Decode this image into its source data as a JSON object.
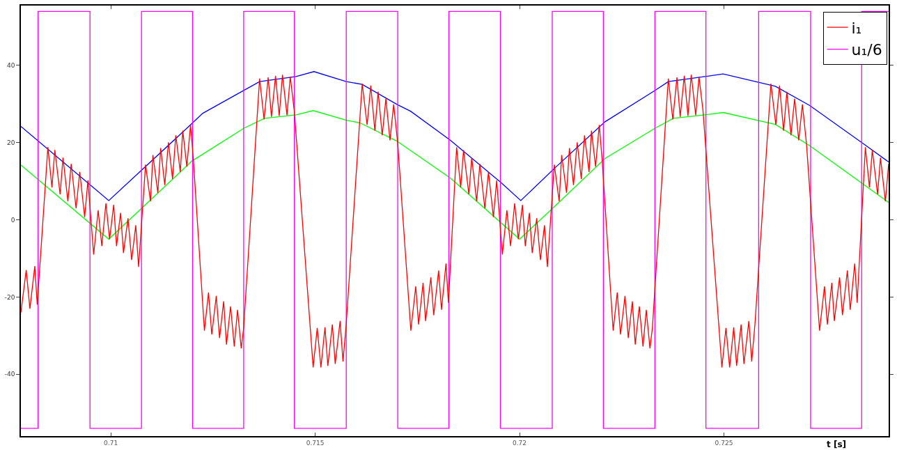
{
  "chart_data": {
    "type": "line",
    "xlabel": "t [s]",
    "xlim": [
      0.7078,
      0.72903
    ],
    "ylim": [
      -56,
      55.5
    ],
    "xticks": [
      0.71,
      0.715,
      0.72,
      0.725
    ],
    "yticks": [
      -40,
      -20,
      0,
      20,
      40
    ],
    "legend": "top right",
    "marker": "none",
    "line_style": "solid",
    "series": [
      {
        "name": "i₁",
        "color": "#ff0000",
        "x": [
          0.7078,
          0.70793,
          0.70802,
          0.70814,
          0.7082,
          0.70846,
          0.70856,
          0.70863,
          0.70876,
          0.70883,
          0.70895,
          0.70903,
          0.70915,
          0.70924,
          0.70936,
          0.70944,
          0.70958,
          0.70969,
          0.70978,
          0.70988,
          0.70997,
          0.71007,
          0.71014,
          0.71024,
          0.71031,
          0.71042,
          0.71051,
          0.71061,
          0.71068,
          0.71085,
          0.71097,
          0.71103,
          0.71115,
          0.71122,
          0.71132,
          0.71141,
          0.71151,
          0.71159,
          0.7117,
          0.71176,
          0.71186,
          0.71195,
          0.71202,
          0.71229,
          0.71239,
          0.71247,
          0.71258,
          0.71266,
          0.71276,
          0.71283,
          0.71293,
          0.71302,
          0.7131,
          0.71319,
          0.71325,
          0.71364,
          0.71375,
          0.71385,
          0.71393,
          0.71403,
          0.71412,
          0.7142,
          0.71431,
          0.71439,
          0.71449,
          0.71495,
          0.71505,
          0.71514,
          0.71524,
          0.71531,
          0.71542,
          0.71549,
          0.71561,
          0.71568,
          0.71576,
          0.71615,
          0.71627,
          0.71636,
          0.71646,
          0.71654,
          0.71664,
          0.71673,
          0.71683,
          0.71692,
          0.71702,
          0.71734,
          0.71746,
          0.71753,
          0.71764,
          0.7177,
          0.71783,
          0.7179,
          0.71802,
          0.71809,
          0.7182,
          0.71826,
          0.71846,
          0.71856,
          0.71863,
          0.71876,
          0.71883,
          0.71895,
          0.71903,
          0.71915,
          0.71924,
          0.71936,
          0.71944,
          0.71958,
          0.71969,
          0.71978,
          0.71988,
          0.71997,
          0.72007,
          0.72014,
          0.72024,
          0.72031,
          0.72042,
          0.72051,
          0.72061,
          0.72068,
          0.72085,
          0.72097,
          0.72103,
          0.72115,
          0.72122,
          0.72132,
          0.72141,
          0.72151,
          0.72159,
          0.7217,
          0.72176,
          0.72186,
          0.72195,
          0.72202,
          0.72229,
          0.72239,
          0.72247,
          0.72258,
          0.72266,
          0.72276,
          0.72283,
          0.72293,
          0.72302,
          0.7231,
          0.72319,
          0.72325,
          0.72364,
          0.72375,
          0.72385,
          0.72393,
          0.72403,
          0.72412,
          0.7242,
          0.72431,
          0.72439,
          0.72449,
          0.72495,
          0.72505,
          0.72514,
          0.72524,
          0.72531,
          0.72542,
          0.72549,
          0.72561,
          0.72568,
          0.72576,
          0.72615,
          0.72627,
          0.72636,
          0.72646,
          0.72654,
          0.72664,
          0.72673,
          0.72683,
          0.72692,
          0.72702,
          0.72734,
          0.72746,
          0.72753,
          0.72764,
          0.7277,
          0.72783,
          0.7279,
          0.72802,
          0.72809,
          0.7282,
          0.72826,
          0.72846,
          0.72856,
          0.72863,
          0.72876,
          0.72883,
          0.72895,
          0.72903
        ],
        "values": [
          -24,
          -13,
          -23,
          -12,
          -22,
          18.8,
          8.4,
          18.1,
          6.6,
          16.1,
          4.8,
          14.5,
          3,
          12.4,
          0.7,
          10.2,
          -9,
          2.5,
          -6.8,
          4.3,
          -5,
          3.9,
          -6.8,
          1.8,
          -8.6,
          0.4,
          -10.4,
          -1.4,
          -12.2,
          14.3,
          4.8,
          16.8,
          7,
          18.6,
          9,
          20.1,
          10.6,
          21.9,
          12.4,
          23.1,
          13.8,
          24.6,
          15.6,
          -28.7,
          -18.8,
          -29.7,
          -19.7,
          -30.6,
          -21.1,
          -32.3,
          -22.4,
          -32.8,
          -23.3,
          -33.3,
          -28,
          36.6,
          26,
          36.9,
          26.7,
          37.3,
          26.9,
          37.6,
          27.1,
          37.1,
          28.1,
          -38.2,
          -28,
          -38.2,
          -27.8,
          -37.8,
          -27.1,
          -37.3,
          -26.2,
          -36.7,
          -26.9,
          35.3,
          24.6,
          34.8,
          23.1,
          33.2,
          21.9,
          31.4,
          20.6,
          29.9,
          19.7,
          -28.7,
          -17.2,
          -27.1,
          -16.3,
          -26.2,
          -14.9,
          -24.7,
          -13.1,
          -23.3,
          -11.3,
          -21.5,
          18.8,
          8.4,
          18.1,
          6.6,
          16.1,
          4.8,
          14.5,
          3,
          12.4,
          0.7,
          10.2,
          -9,
          2.5,
          -6.8,
          4.3,
          -5,
          3.9,
          -6.8,
          1.8,
          -8.6,
          0.4,
          -10.4,
          -1.4,
          -12.2,
          14.3,
          4.8,
          16.8,
          7,
          18.6,
          9,
          20.1,
          10.6,
          21.9,
          12.4,
          23.1,
          13.8,
          24.6,
          15.6,
          -28.7,
          -18.8,
          -29.7,
          -19.7,
          -30.6,
          -21.1,
          -32.3,
          -22.4,
          -32.8,
          -23.3,
          -33.3,
          -28,
          36.6,
          26,
          36.9,
          26.7,
          37.3,
          26.9,
          37.6,
          27.1,
          37.1,
          28.1,
          -38.2,
          -28,
          -38.2,
          -27.8,
          -37.8,
          -27.1,
          -37.3,
          -26.2,
          -36.7,
          -26.9,
          35.3,
          24.6,
          34.8,
          23.1,
          33.2,
          21.9,
          31.4,
          20.6,
          29.9,
          19.7,
          -28.7,
          -17.2,
          -27.1,
          -16.3,
          -26.2,
          -14.9,
          -24.7,
          -13.1,
          -23.3,
          -11.3,
          -21.5,
          18.8,
          8.4,
          18.1,
          6.6,
          16.1,
          4.8,
          14.5
        ]
      },
      {
        "name": "u₁/6",
        "color": "#ff00ff",
        "x": [
          0.7078,
          0.70822,
          0.70822,
          0.70949,
          0.70949,
          0.71075,
          0.71075,
          0.712,
          0.712,
          0.71325,
          0.71325,
          0.71449,
          0.71449,
          0.71576,
          0.71576,
          0.71702,
          0.71702,
          0.71827,
          0.71827,
          0.71953,
          0.71953,
          0.7208,
          0.7208,
          0.72205,
          0.72205,
          0.72331,
          0.72331,
          0.72456,
          0.72456,
          0.72585,
          0.72585,
          0.72712,
          0.72712,
          0.72837,
          0.72837,
          0.72903
        ],
        "values": [
          -54,
          -54,
          54,
          54,
          -54,
          -54,
          54,
          54,
          -54,
          -54,
          54,
          54,
          -54,
          -54,
          54,
          54,
          -54,
          -54,
          54,
          54,
          -54,
          -54,
          54,
          54,
          -54,
          -54,
          54,
          54,
          -54,
          -54,
          54,
          54,
          -54,
          -54,
          54,
          54
        ]
      },
      {
        "color": "#0000ff",
        "x": [
          0.7078,
          0.70995,
          0.71198,
          0.71225,
          0.71325,
          0.71364,
          0.71453,
          0.71497,
          0.71576,
          0.71615,
          0.717,
          0.71734,
          0.71831,
          0.71954,
          0.72003,
          0.72085,
          0.72209,
          0.72331,
          0.72364,
          0.72453,
          0.72498,
          0.72626,
          0.7271,
          0.72844,
          0.72903
        ],
        "values": [
          24.2,
          5,
          24.9,
          27.6,
          33.5,
          35.8,
          37.1,
          38.4,
          35.8,
          35.1,
          29.9,
          28.1,
          20.6,
          9.7,
          5,
          13.3,
          25.4,
          33.5,
          35.8,
          37.1,
          37.8,
          34.6,
          29.6,
          19.5,
          15
        ]
      },
      {
        "color": "#00ff00",
        "x": [
          0.7078,
          0.70995,
          0.71198,
          0.71325,
          0.71376,
          0.71453,
          0.71495,
          0.71576,
          0.7161,
          0.717,
          0.71831,
          0.72,
          0.72085,
          0.72209,
          0.72331,
          0.72376,
          0.72453,
          0.72498,
          0.72626,
          0.7271,
          0.72844,
          0.72903
        ],
        "values": [
          14.2,
          -5,
          15.2,
          23.7,
          26.3,
          27.2,
          28.3,
          25.8,
          25.1,
          20.4,
          10.8,
          -5,
          3.4,
          15.9,
          23.7,
          26.3,
          27.2,
          27.8,
          24.7,
          19.2,
          9,
          4.5
        ]
      }
    ]
  }
}
